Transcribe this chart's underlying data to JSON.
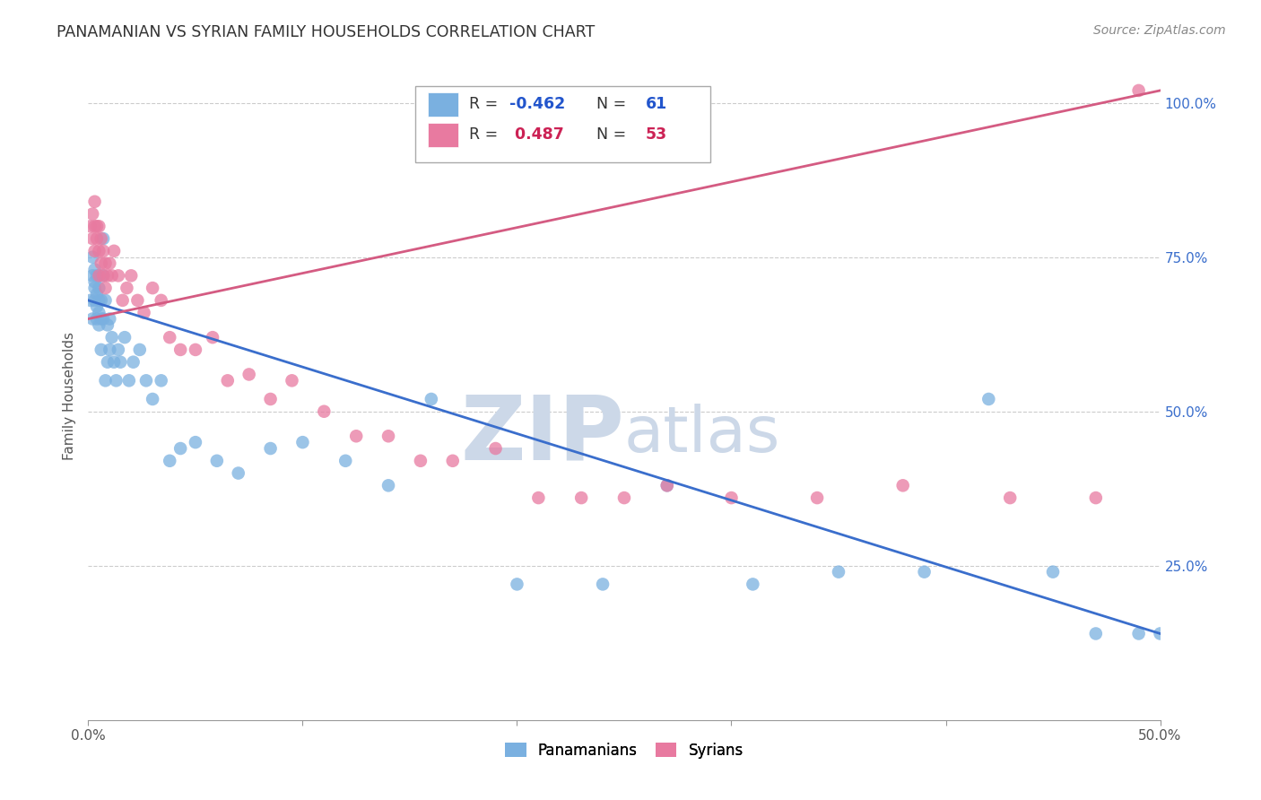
{
  "title": "PANAMANIAN VS SYRIAN FAMILY HOUSEHOLDS CORRELATION CHART",
  "source": "Source: ZipAtlas.com",
  "ylabel": "Family Households",
  "xlim": [
    0.0,
    0.5
  ],
  "ylim": [
    0.0,
    1.05
  ],
  "yticks": [
    0.0,
    0.25,
    0.5,
    0.75,
    1.0
  ],
  "ytick_labels": [
    "",
    "25.0%",
    "50.0%",
    "75.0%",
    "100.0%"
  ],
  "xticks": [
    0.0,
    0.1,
    0.2,
    0.3,
    0.4,
    0.5
  ],
  "xtick_labels": [
    "0.0%",
    "",
    "",
    "",
    "",
    "50.0%"
  ],
  "blue_R": -0.462,
  "blue_N": 61,
  "pink_R": 0.487,
  "pink_N": 53,
  "blue_color": "#7ab0e0",
  "pink_color": "#e87aa0",
  "blue_line_color": "#3a6ecc",
  "pink_line_color": "#d45b82",
  "watermark_zip": "ZIP",
  "watermark_atlas": "atlas",
  "watermark_color": "#ccd8e8",
  "blue_x": [
    0.001,
    0.002,
    0.002,
    0.002,
    0.003,
    0.003,
    0.003,
    0.003,
    0.004,
    0.004,
    0.004,
    0.004,
    0.005,
    0.005,
    0.005,
    0.005,
    0.006,
    0.006,
    0.006,
    0.007,
    0.007,
    0.007,
    0.008,
    0.008,
    0.009,
    0.009,
    0.01,
    0.01,
    0.011,
    0.012,
    0.013,
    0.014,
    0.015,
    0.017,
    0.019,
    0.021,
    0.024,
    0.027,
    0.03,
    0.034,
    0.038,
    0.043,
    0.05,
    0.06,
    0.07,
    0.085,
    0.1,
    0.12,
    0.14,
    0.16,
    0.2,
    0.24,
    0.27,
    0.31,
    0.35,
    0.39,
    0.42,
    0.45,
    0.47,
    0.49,
    0.5
  ],
  "blue_y": [
    0.68,
    0.72,
    0.75,
    0.65,
    0.7,
    0.68,
    0.71,
    0.73,
    0.67,
    0.69,
    0.72,
    0.65,
    0.68,
    0.7,
    0.64,
    0.66,
    0.6,
    0.65,
    0.68,
    0.72,
    0.78,
    0.65,
    0.68,
    0.55,
    0.64,
    0.58,
    0.6,
    0.65,
    0.62,
    0.58,
    0.55,
    0.6,
    0.58,
    0.62,
    0.55,
    0.58,
    0.6,
    0.55,
    0.52,
    0.55,
    0.42,
    0.44,
    0.45,
    0.42,
    0.4,
    0.44,
    0.45,
    0.42,
    0.38,
    0.52,
    0.22,
    0.22,
    0.38,
    0.22,
    0.24,
    0.24,
    0.52,
    0.24,
    0.14,
    0.14,
    0.14
  ],
  "pink_x": [
    0.001,
    0.002,
    0.002,
    0.003,
    0.003,
    0.003,
    0.004,
    0.004,
    0.005,
    0.005,
    0.005,
    0.006,
    0.006,
    0.007,
    0.007,
    0.008,
    0.008,
    0.009,
    0.01,
    0.011,
    0.012,
    0.014,
    0.016,
    0.018,
    0.02,
    0.023,
    0.026,
    0.03,
    0.034,
    0.038,
    0.043,
    0.05,
    0.058,
    0.065,
    0.075,
    0.085,
    0.095,
    0.11,
    0.125,
    0.14,
    0.155,
    0.17,
    0.19,
    0.21,
    0.23,
    0.25,
    0.27,
    0.3,
    0.34,
    0.38,
    0.43,
    0.47,
    0.49
  ],
  "pink_y": [
    0.8,
    0.82,
    0.78,
    0.8,
    0.76,
    0.84,
    0.78,
    0.8,
    0.72,
    0.76,
    0.8,
    0.74,
    0.78,
    0.72,
    0.76,
    0.7,
    0.74,
    0.72,
    0.74,
    0.72,
    0.76,
    0.72,
    0.68,
    0.7,
    0.72,
    0.68,
    0.66,
    0.7,
    0.68,
    0.62,
    0.6,
    0.6,
    0.62,
    0.55,
    0.56,
    0.52,
    0.55,
    0.5,
    0.46,
    0.46,
    0.42,
    0.42,
    0.44,
    0.36,
    0.36,
    0.36,
    0.38,
    0.36,
    0.36,
    0.38,
    0.36,
    0.36,
    1.02
  ],
  "blue_line_x0": 0.0,
  "blue_line_x1": 0.5,
  "blue_line_y0": 0.68,
  "blue_line_y1": 0.14,
  "pink_line_x0": 0.0,
  "pink_line_x1": 0.5,
  "pink_line_y0": 0.65,
  "pink_line_y1": 1.02
}
